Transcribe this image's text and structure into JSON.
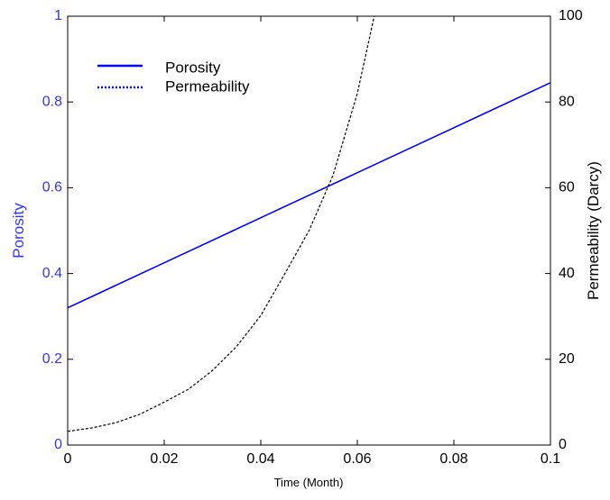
{
  "chart_data": {
    "type": "line",
    "xlabel": "Time (Month)",
    "ylabel_left": "Porosity",
    "ylabel_right": "Permeability (Darcy)",
    "xlim": [
      0,
      0.1
    ],
    "ylim_left": [
      0,
      1
    ],
    "ylim_right": [
      0,
      100
    ],
    "xticks": [
      "0",
      "0.02",
      "0.04",
      "0.06",
      "0.08",
      "0.1"
    ],
    "yticks_left": [
      "0",
      "0.2",
      "0.4",
      "0.6",
      "0.8",
      "1"
    ],
    "yticks_right": [
      "0",
      "20",
      "40",
      "60",
      "80",
      "100"
    ],
    "grid": false,
    "legend_position": "top-left",
    "colors": {
      "porosity": "#0000ff",
      "permeability": "#000000",
      "left_axis_text": "#3333ff",
      "right_axis_text": "#000000"
    },
    "series": [
      {
        "name": "Porosity",
        "axis": "left",
        "line_style": "solid",
        "x": [
          0,
          0.02,
          0.04,
          0.06,
          0.08,
          0.1
        ],
        "y": [
          0.32,
          0.425,
          0.53,
          0.635,
          0.74,
          0.845
        ]
      },
      {
        "name": "Permeability",
        "axis": "right",
        "line_style": "dotted",
        "x": [
          0,
          0.005,
          0.01,
          0.015,
          0.02,
          0.025,
          0.03,
          0.035,
          0.04,
          0.045,
          0.05,
          0.055,
          0.06,
          0.0635
        ],
        "y": [
          3.2,
          4.0,
          5.2,
          7.2,
          10.0,
          13.0,
          17.4,
          23.0,
          30.2,
          40.0,
          50.0,
          63.0,
          82.0,
          100
        ]
      }
    ]
  }
}
